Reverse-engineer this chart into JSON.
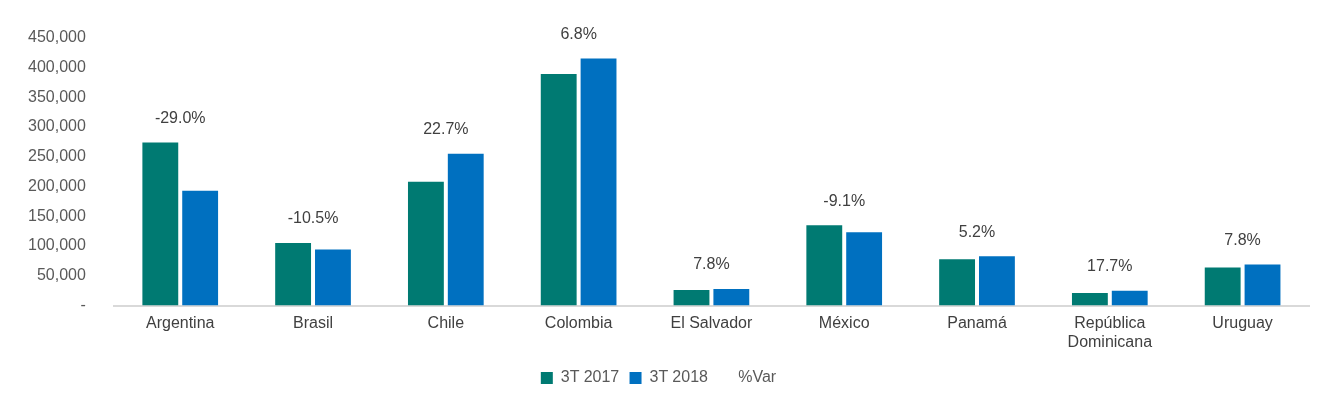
{
  "chart_data": {
    "type": "bar",
    "categories": [
      "Argentina",
      "Brasil",
      "Chile",
      "Colombia",
      "El Salvador",
      "México",
      "Panamá",
      "República Dominicana",
      "Uruguay"
    ],
    "series": [
      {
        "name": "3T 2017",
        "color": "#007a72",
        "values": [
          274000,
          105000,
          208000,
          389000,
          26000,
          135000,
          78000,
          21000,
          64000
        ]
      },
      {
        "name": "3T 2018",
        "color": "#0070c0",
        "values": [
          193000,
          94000,
          255000,
          415000,
          28000,
          123000,
          83000,
          25000,
          69000
        ]
      },
      {
        "name": "%Var",
        "type": "line",
        "values": [
          null,
          null,
          null,
          null,
          null,
          null,
          null,
          null,
          null
        ]
      }
    ],
    "annotations": [
      "-29.0%",
      "-10.5%",
      "22.7%",
      "6.8%",
      "7.8%",
      "-9.1%",
      "5.2%",
      "17.7%",
      "7.8%"
    ],
    "ylim": [
      0,
      450000
    ],
    "yticks": [
      {
        "value": 0,
        "label": "-"
      },
      {
        "value": 50000,
        "label": "50,000"
      },
      {
        "value": 100000,
        "label": "100,000"
      },
      {
        "value": 150000,
        "label": "150,000"
      },
      {
        "value": 200000,
        "label": "200,000"
      },
      {
        "value": 250000,
        "label": "250,000"
      },
      {
        "value": 300000,
        "label": "300,000"
      },
      {
        "value": 350000,
        "label": "350,000"
      },
      {
        "value": 400000,
        "label": "400,000"
      },
      {
        "value": 450000,
        "label": "450,000"
      }
    ],
    "grid": false,
    "legend": "bottom"
  }
}
